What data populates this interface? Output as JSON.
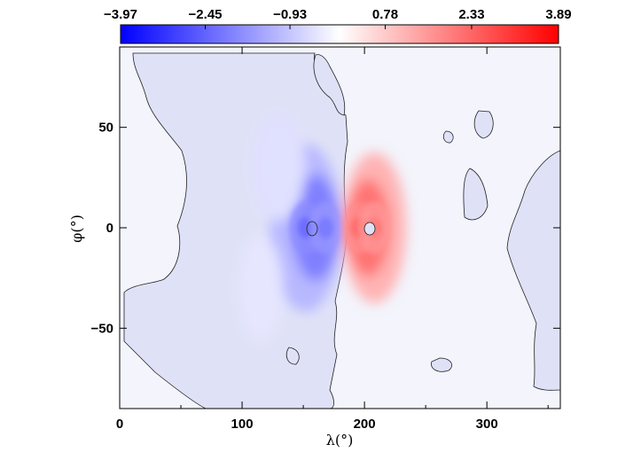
{
  "chart_data": {
    "type": "heatmap",
    "title": "",
    "xlabel": "λ(°)",
    "ylabel": "φ(°)",
    "xlim": [
      0,
      360
    ],
    "ylim": [
      -90,
      90
    ],
    "x_ticks": [
      0,
      100,
      200,
      300
    ],
    "y_ticks": [
      50,
      0,
      -50
    ],
    "x_tick_labels": [
      "0",
      "100",
      "200",
      "300"
    ],
    "y_tick_labels": [
      "50",
      "0",
      "−50"
    ],
    "colorbar": {
      "min": -3.97,
      "max": 3.89,
      "tick_values": [
        -3.97,
        -2.45,
        -0.93,
        0.78,
        2.33,
        3.89
      ],
      "tick_labels": [
        "−3.97",
        "−2.45",
        "−0.93",
        "0.78",
        "2.33",
        "3.89"
      ],
      "colors": {
        "negative": "#0000ff",
        "zero": "#ffffff",
        "positive": "#ff0000"
      }
    },
    "features": [
      {
        "lon": 152,
        "lat": 0,
        "value": -3.97
      },
      {
        "lon": 168,
        "lat": 0,
        "value": -3.6
      },
      {
        "lon": 195,
        "lat": 0,
        "value": 3.89
      },
      {
        "lon": 208,
        "lat": 0,
        "value": 3.5
      }
    ],
    "background_value": -0.3,
    "grid": false
  }
}
